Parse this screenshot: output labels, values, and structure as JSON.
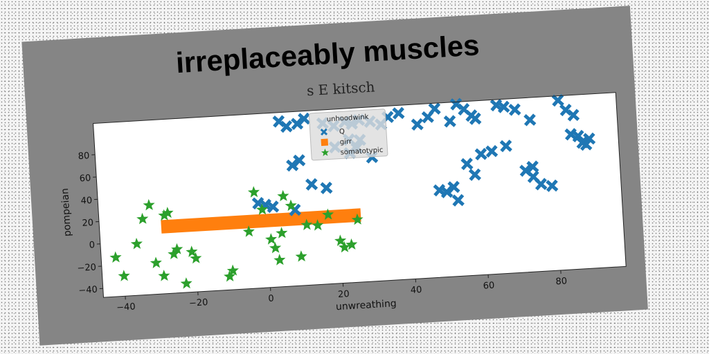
{
  "figure": {
    "title": "irreplaceably muscles",
    "subtitle": "s E kitsch"
  },
  "chart_data": {
    "type": "scatter",
    "title": "s E kitsch",
    "xlabel": "unwreathing",
    "ylabel": "pompeian",
    "xlim": [
      -46,
      98
    ],
    "ylim": [
      -48,
      108
    ],
    "xticks": [
      -40,
      -20,
      0,
      20,
      40,
      60,
      80
    ],
    "yticks": [
      -40,
      -20,
      0,
      20,
      40,
      60,
      80
    ],
    "grid": false,
    "legend": {
      "title": "unhoodwink",
      "placement": "top-center"
    },
    "series": [
      {
        "name": "Q",
        "marker": "x",
        "color": "#1f77b4",
        "points": [
          [
            5,
            100
          ],
          [
            7,
            95
          ],
          [
            10,
            97
          ],
          [
            12,
            101
          ],
          [
            17,
            96
          ],
          [
            20,
            93
          ],
          [
            23,
            96
          ],
          [
            25,
            94
          ],
          [
            27,
            97
          ],
          [
            30,
            95
          ],
          [
            33,
            92
          ],
          [
            35,
            98
          ],
          [
            38,
            101
          ],
          [
            24,
            80
          ],
          [
            27,
            79
          ],
          [
            20,
            74
          ],
          [
            24,
            68
          ],
          [
            26,
            72
          ],
          [
            30,
            63
          ],
          [
            8,
            60
          ],
          [
            10,
            64
          ],
          [
            13,
            42
          ],
          [
            17,
            38
          ],
          [
            8,
            20
          ],
          [
            -2,
            28
          ],
          [
            0,
            26
          ],
          [
            2,
            24
          ],
          [
            43,
            90
          ],
          [
            46,
            96
          ],
          [
            48,
            103
          ],
          [
            52,
            91
          ],
          [
            54,
            106
          ],
          [
            56,
            101
          ],
          [
            58,
            95
          ],
          [
            59,
            92
          ],
          [
            65,
            103
          ],
          [
            67,
            101
          ],
          [
            70,
            98
          ],
          [
            74,
            88
          ],
          [
            82,
            104
          ],
          [
            84,
            95
          ],
          [
            86,
            90
          ],
          [
            85,
            73
          ],
          [
            87,
            71
          ],
          [
            88,
            65
          ],
          [
            89,
            63
          ],
          [
            90,
            68
          ],
          [
            48,
            30
          ],
          [
            50,
            28
          ],
          [
            52,
            32
          ],
          [
            53,
            20
          ],
          [
            56,
            52
          ],
          [
            58,
            42
          ],
          [
            60,
            60
          ],
          [
            63,
            62
          ],
          [
            67,
            66
          ],
          [
            72,
            43
          ],
          [
            74,
            46
          ],
          [
            74,
            37
          ],
          [
            76,
            30
          ],
          [
            79,
            28
          ]
        ]
      },
      {
        "name": "girr",
        "marker": "s",
        "color": "#ff7f0e",
        "points": []
      },
      {
        "name": "somatotypic",
        "marker": "*",
        "color": "#2ca02c",
        "points": [
          [
            -42,
            -13
          ],
          [
            -40,
            -30
          ],
          [
            -36,
            -2
          ],
          [
            -34,
            20
          ],
          [
            -32,
            32
          ],
          [
            -31,
            -20
          ],
          [
            -29,
            -32
          ],
          [
            -28,
            22
          ],
          [
            -27,
            24
          ],
          [
            -26,
            -13
          ],
          [
            -25,
            -9
          ],
          [
            -23,
            -40
          ],
          [
            -21,
            -12
          ],
          [
            -20,
            -18
          ],
          [
            -11,
            -36
          ],
          [
            -10,
            -31
          ],
          [
            -5,
            3
          ],
          [
            -3,
            38
          ],
          [
            -1,
            22
          ],
          [
            1,
            -5
          ],
          [
            2,
            -13
          ],
          [
            3,
            -24
          ],
          [
            4,
            0
          ],
          [
            5,
            33
          ],
          [
            7,
            24
          ],
          [
            9,
            -22
          ],
          [
            11,
            6
          ],
          [
            14,
            5
          ],
          [
            17,
            14
          ],
          [
            20,
            -10
          ],
          [
            21,
            -16
          ],
          [
            23,
            -14
          ],
          [
            25,
            8
          ]
        ]
      }
    ],
    "bands": [
      {
        "series": "girr",
        "x": [
          -29,
          26
        ],
        "y": [
          6,
          18
        ]
      }
    ]
  }
}
